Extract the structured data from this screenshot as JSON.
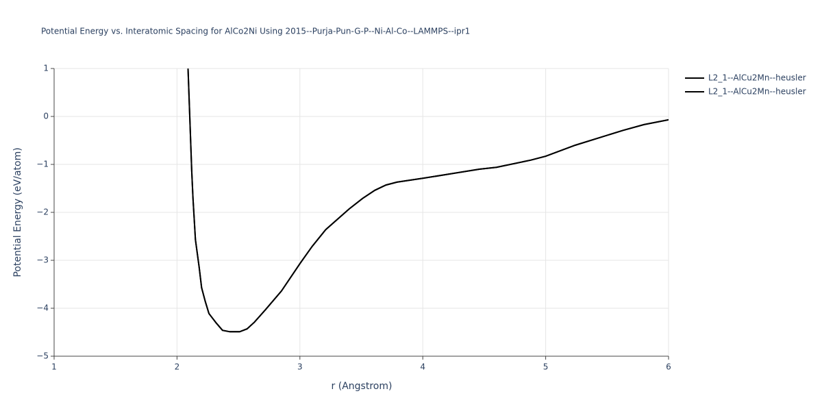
{
  "chart_data": {
    "type": "line",
    "title": "Potential Energy vs. Interatomic Spacing for AlCo2Ni Using 2015--Purja-Pun-G-P--Ni-Al-Co--LAMMPS--ipr1",
    "xlabel": "r (Angstrom)",
    "ylabel": "Potential Energy (eV/atom)",
    "xlim": [
      1,
      6
    ],
    "ylim": [
      -5,
      1
    ],
    "xticks": [
      1,
      2,
      3,
      4,
      5,
      6
    ],
    "yticks": [
      {
        "value": -5,
        "label": "−5"
      },
      {
        "value": -4,
        "label": "−4"
      },
      {
        "value": -3,
        "label": "−3"
      },
      {
        "value": -2,
        "label": "−2"
      },
      {
        "value": -1,
        "label": "−1"
      },
      0,
      1
    ],
    "grid": true,
    "legend": "top-right",
    "series": [
      {
        "name": "L2_1--AlCu2Mn--heusler",
        "color": "#000000",
        "x": [
          2.09,
          2.12,
          2.13,
          2.15,
          2.18,
          2.2,
          2.23,
          2.26,
          2.32,
          2.37,
          2.43,
          2.51,
          2.57,
          2.63,
          2.72,
          2.85,
          3.0,
          3.1,
          3.21,
          3.4,
          3.51,
          3.61,
          3.7,
          3.79,
          4.0,
          4.46,
          4.6,
          4.88,
          5.0,
          5.24,
          5.63,
          5.8,
          6.0
        ],
        "values": [
          1.0,
          -1.14,
          -1.7,
          -2.57,
          -3.14,
          -3.57,
          -3.86,
          -4.11,
          -4.31,
          -4.46,
          -4.49,
          -4.49,
          -4.43,
          -4.29,
          -4.03,
          -3.64,
          -3.07,
          -2.71,
          -2.36,
          -1.93,
          -1.71,
          -1.54,
          -1.43,
          -1.37,
          -1.29,
          -1.1,
          -1.06,
          -0.91,
          -0.83,
          -0.6,
          -0.29,
          -0.17,
          -0.07
        ]
      },
      {
        "name": "L2_1--AlCu2Mn--heusler",
        "color": "#000000",
        "x": [
          2.09,
          2.12,
          2.13,
          2.15,
          2.18,
          2.2,
          2.23,
          2.26,
          2.32,
          2.37,
          2.43,
          2.51,
          2.57,
          2.63,
          2.72,
          2.85,
          3.0,
          3.1,
          3.21,
          3.4,
          3.51,
          3.61,
          3.7,
          3.79,
          4.0,
          4.46,
          4.6,
          4.88,
          5.0,
          5.24,
          5.63,
          5.8,
          6.0
        ],
        "values": [
          1.0,
          -1.14,
          -1.7,
          -2.57,
          -3.14,
          -3.57,
          -3.86,
          -4.11,
          -4.31,
          -4.46,
          -4.49,
          -4.49,
          -4.43,
          -4.29,
          -4.03,
          -3.64,
          -3.07,
          -2.71,
          -2.36,
          -1.93,
          -1.71,
          -1.54,
          -1.43,
          -1.37,
          -1.29,
          -1.1,
          -1.06,
          -0.91,
          -0.83,
          -0.6,
          -0.29,
          -0.17,
          -0.07
        ]
      }
    ]
  }
}
